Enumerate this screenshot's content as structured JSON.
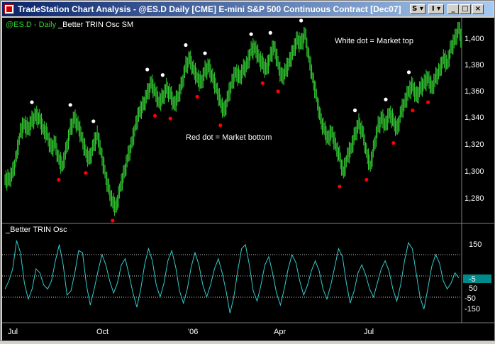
{
  "window": {
    "title": "TradeStation Chart Analysis - @ES.D  Daily  [CME] E-mini S&P 500 Continuous Contract [Dec07]",
    "buttons": {
      "s": "S ▾",
      "i": "I ▾",
      "minimize": "_",
      "maximize": "□",
      "close": "×"
    }
  },
  "colors": {
    "background": "#000000",
    "bars": "#33cc33",
    "indicator_line": "#33cccc",
    "top_dot": "#ffffff",
    "bottom_dot": "#ff0000",
    "axis_text": "#ffffff",
    "last_value_box": "#008b8b"
  },
  "price_panel": {
    "symbol_label": "@ES.D - Daily",
    "indicator_label": "_Better TRIN Osc SM",
    "annotation_top": "White dot = Market top",
    "annotation_bottom": "Red dot = Market bottom",
    "y_ticks": [
      "1,400",
      "1,380",
      "1,360",
      "1,340",
      "1,320",
      "1,300",
      "1,280"
    ]
  },
  "osc_panel": {
    "label": "_Better TRIN Osc",
    "y_ticks": [
      "150",
      "50",
      "-50",
      "-150"
    ],
    "last_value": "-5"
  },
  "x_axis": {
    "labels": [
      "Jul",
      "Oct",
      "'06",
      "Apr",
      "Jul"
    ]
  },
  "chart_data": [
    {
      "type": "line",
      "title": "@ES.D - Daily",
      "ylim": [
        1265,
        1412
      ],
      "series": [
        {
          "name": "@ES.D - Daily",
          "values": [
            1295,
            1300,
            1312,
            1330,
            1336,
            1332,
            1338,
            1342,
            1340,
            1332,
            1328,
            1318,
            1322,
            1310,
            1305,
            1318,
            1332,
            1340,
            1335,
            1326,
            1315,
            1310,
            1320,
            1328,
            1315,
            1300,
            1288,
            1278,
            1275,
            1290,
            1300,
            1312,
            1322,
            1335,
            1345,
            1350,
            1358,
            1366,
            1360,
            1352,
            1355,
            1362,
            1358,
            1350,
            1356,
            1365,
            1378,
            1384,
            1376,
            1370,
            1366,
            1375,
            1378,
            1370,
            1362,
            1352,
            1345,
            1356,
            1366,
            1374,
            1370,
            1376,
            1380,
            1390,
            1392,
            1385,
            1380,
            1376,
            1386,
            1393,
            1380,
            1370,
            1375,
            1382,
            1390,
            1398,
            1395,
            1402,
            1385,
            1370,
            1356,
            1340,
            1332,
            1325,
            1330,
            1320,
            1312,
            1300,
            1312,
            1318,
            1328,
            1336,
            1330,
            1315,
            1305,
            1320,
            1334,
            1340,
            1335,
            1344,
            1338,
            1332,
            1345,
            1352,
            1360,
            1364,
            1356,
            1362,
            1366,
            1370,
            1362,
            1370,
            1375,
            1384,
            1380,
            1392,
            1398,
            1406,
            1394
          ]
        }
      ]
    },
    {
      "type": "line",
      "title": "_Better TRIN Osc",
      "ylim": [
        -220,
        230
      ],
      "series": [
        {
          "name": "_Better TRIN Osc",
          "values": [
            -60,
            -20,
            40,
            180,
            120,
            -30,
            -110,
            -60,
            40,
            20,
            -40,
            -60,
            -20,
            80,
            160,
            60,
            -90,
            -70,
            20,
            130,
            120,
            -40,
            -140,
            -60,
            30,
            110,
            60,
            -20,
            -80,
            -30,
            60,
            90,
            10,
            -80,
            -150,
            -60,
            60,
            140,
            80,
            -40,
            -100,
            -30,
            80,
            130,
            50,
            -70,
            -130,
            -60,
            50,
            120,
            60,
            -40,
            -100,
            -40,
            40,
            90,
            20,
            -70,
            -180,
            -100,
            30,
            140,
            160,
            60,
            -70,
            -120,
            -40,
            60,
            100,
            20,
            -80,
            -140,
            -60,
            40,
            110,
            70,
            -20,
            -90,
            -40,
            30,
            80,
            30,
            -60,
            -110,
            -40,
            50,
            140,
            100,
            -30,
            -130,
            -70,
            20,
            60,
            10,
            -60,
            -100,
            -30,
            40,
            80,
            30,
            -60,
            -120,
            -40,
            80,
            170,
            140,
            20,
            -100,
            -160,
            -60,
            50,
            110,
            70,
            -20,
            -60,
            -30,
            20,
            -5
          ]
        }
      ]
    }
  ]
}
